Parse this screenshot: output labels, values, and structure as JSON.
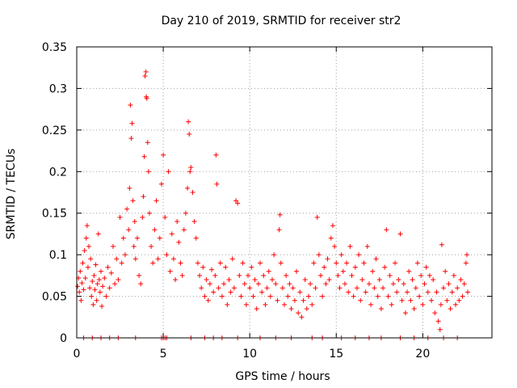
{
  "chart_data": {
    "type": "scatter",
    "title": "Day 210 of 2019, SRMTID for receiver str2",
    "xlabel": "GPS time / hours",
    "ylabel": "SRMTID / TECUs",
    "xlim": [
      0,
      24
    ],
    "ylim": [
      0,
      0.35
    ],
    "xticks": [
      0,
      5,
      10,
      15,
      20
    ],
    "xtick_labels": [
      "0",
      "5",
      "10",
      "15",
      "20"
    ],
    "yticks": [
      0,
      0.05,
      0.1,
      0.15,
      0.2,
      0.25,
      0.3,
      0.35
    ],
    "ytick_labels": [
      "0",
      "0.05",
      "0.1",
      "0.15",
      "0.2",
      "0.25",
      "0.3",
      "0.35"
    ],
    "grid": true,
    "marker": "+",
    "color": "#ff0000",
    "series": [
      {
        "name": "SRMTID",
        "points": [
          [
            0.05,
            0.062
          ],
          [
            0.1,
            0.072
          ],
          [
            0.15,
            0.055
          ],
          [
            0.2,
            0.08
          ],
          [
            0.25,
            0.045
          ],
          [
            0.3,
            0.066
          ],
          [
            0.35,
            0.09
          ],
          [
            0.4,
            0.058
          ],
          [
            0.45,
            0.105
          ],
          [
            0.5,
            0.072
          ],
          [
            0.55,
            0.12
          ],
          [
            0.6,
            0.135
          ],
          [
            0.65,
            0.085
          ],
          [
            0.7,
            0.11
          ],
          [
            0.75,
            0.06
          ],
          [
            0.8,
            0.095
          ],
          [
            0.85,
            0.05
          ],
          [
            0.9,
            0.068
          ],
          [
            0.95,
            0.04
          ],
          [
            1.0,
            0.075
          ],
          [
            1.05,
            0.058
          ],
          [
            1.1,
            0.088
          ],
          [
            1.15,
            0.045
          ],
          [
            1.2,
            0.065
          ],
          [
            1.25,
            0.125
          ],
          [
            1.3,
            0.07
          ],
          [
            1.35,
            0.055
          ],
          [
            1.4,
            0.08
          ],
          [
            1.45,
            0.038
          ],
          [
            1.5,
            0.062
          ],
          [
            1.6,
            0.072
          ],
          [
            1.7,
            0.05
          ],
          [
            1.8,
            0.085
          ],
          [
            1.9,
            0.06
          ],
          [
            2.0,
            0.078
          ],
          [
            2.1,
            0.11
          ],
          [
            2.2,
            0.065
          ],
          [
            2.3,
            0.095
          ],
          [
            2.4,
            0.07
          ],
          [
            2.5,
            0.145
          ],
          [
            2.6,
            0.09
          ],
          [
            2.7,
            0.12
          ],
          [
            2.8,
            0.1
          ],
          [
            2.9,
            0.155
          ],
          [
            3.0,
            0.13
          ],
          [
            3.05,
            0.18
          ],
          [
            3.1,
            0.28
          ],
          [
            3.15,
            0.24
          ],
          [
            3.2,
            0.258
          ],
          [
            3.25,
            0.165
          ],
          [
            3.3,
            0.11
          ],
          [
            3.35,
            0.14
          ],
          [
            3.4,
            0.095
          ],
          [
            3.5,
            0.12
          ],
          [
            3.6,
            0.075
          ],
          [
            3.7,
            0.065
          ],
          [
            3.8,
            0.145
          ],
          [
            3.85,
            0.17
          ],
          [
            3.9,
            0.218
          ],
          [
            3.95,
            0.315
          ],
          [
            4.0,
            0.32
          ],
          [
            4.02,
            0.29
          ],
          [
            4.05,
            0.288
          ],
          [
            4.1,
            0.235
          ],
          [
            4.15,
            0.2
          ],
          [
            4.2,
            0.15
          ],
          [
            4.3,
            0.11
          ],
          [
            4.4,
            0.09
          ],
          [
            4.5,
            0.13
          ],
          [
            4.6,
            0.165
          ],
          [
            4.7,
            0.095
          ],
          [
            4.8,
            0.12
          ],
          [
            4.9,
            0.185
          ],
          [
            5.0,
            0.22
          ],
          [
            5.1,
            0.145
          ],
          [
            5.2,
            0.1
          ],
          [
            5.3,
            0.2
          ],
          [
            5.4,
            0.08
          ],
          [
            5.5,
            0.125
          ],
          [
            5.6,
            0.095
          ],
          [
            5.7,
            0.07
          ],
          [
            5.8,
            0.14
          ],
          [
            5.9,
            0.115
          ],
          [
            6.0,
            0.09
          ],
          [
            6.1,
            0.075
          ],
          [
            6.2,
            0.13
          ],
          [
            6.3,
            0.15
          ],
          [
            6.4,
            0.18
          ],
          [
            6.45,
            0.26
          ],
          [
            6.5,
            0.245
          ],
          [
            6.55,
            0.2
          ],
          [
            6.6,
            0.205
          ],
          [
            6.7,
            0.175
          ],
          [
            6.8,
            0.14
          ],
          [
            6.9,
            0.12
          ],
          [
            7.0,
            0.09
          ],
          [
            7.1,
            0.075
          ],
          [
            7.2,
            0.06
          ],
          [
            7.3,
            0.085
          ],
          [
            7.4,
            0.05
          ],
          [
            7.5,
            0.07
          ],
          [
            7.6,
            0.045
          ],
          [
            7.7,
            0.065
          ],
          [
            7.8,
            0.082
          ],
          [
            7.9,
            0.055
          ],
          [
            8.0,
            0.075
          ],
          [
            8.05,
            0.22
          ],
          [
            8.1,
            0.185
          ],
          [
            8.2,
            0.06
          ],
          [
            8.3,
            0.09
          ],
          [
            8.4,
            0.05
          ],
          [
            8.5,
            0.065
          ],
          [
            8.6,
            0.085
          ],
          [
            8.7,
            0.04
          ],
          [
            8.8,
            0.07
          ],
          [
            8.9,
            0.055
          ],
          [
            9.0,
            0.095
          ],
          [
            9.1,
            0.06
          ],
          [
            9.2,
            0.165
          ],
          [
            9.3,
            0.162
          ],
          [
            9.4,
            0.075
          ],
          [
            9.5,
            0.05
          ],
          [
            9.6,
            0.09
          ],
          [
            9.7,
            0.065
          ],
          [
            9.8,
            0.04
          ],
          [
            9.9,
            0.075
          ],
          [
            10.0,
            0.06
          ],
          [
            10.1,
            0.085
          ],
          [
            10.2,
            0.05
          ],
          [
            10.3,
            0.07
          ],
          [
            10.4,
            0.035
          ],
          [
            10.5,
            0.065
          ],
          [
            10.6,
            0.09
          ],
          [
            10.7,
            0.055
          ],
          [
            10.8,
            0.075
          ],
          [
            10.9,
            0.04
          ],
          [
            11.0,
            0.06
          ],
          [
            11.1,
            0.08
          ],
          [
            11.2,
            0.05
          ],
          [
            11.3,
            0.07
          ],
          [
            11.4,
            0.1
          ],
          [
            11.5,
            0.065
          ],
          [
            11.6,
            0.045
          ],
          [
            11.7,
            0.13
          ],
          [
            11.75,
            0.148
          ],
          [
            11.8,
            0.09
          ],
          [
            11.9,
            0.06
          ],
          [
            12.0,
            0.04
          ],
          [
            12.1,
            0.075
          ],
          [
            12.2,
            0.05
          ],
          [
            12.3,
            0.065
          ],
          [
            12.4,
            0.035
          ],
          [
            12.5,
            0.06
          ],
          [
            12.6,
            0.045
          ],
          [
            12.7,
            0.08
          ],
          [
            12.8,
            0.03
          ],
          [
            12.9,
            0.055
          ],
          [
            13.0,
            0.025
          ],
          [
            13.1,
            0.045
          ],
          [
            13.2,
            0.07
          ],
          [
            13.3,
            0.035
          ],
          [
            13.4,
            0.05
          ],
          [
            13.5,
            0.065
          ],
          [
            13.6,
            0.04
          ],
          [
            13.7,
            0.09
          ],
          [
            13.8,
            0.06
          ],
          [
            13.9,
            0.145
          ],
          [
            14.0,
            0.1
          ],
          [
            14.1,
            0.075
          ],
          [
            14.2,
            0.05
          ],
          [
            14.3,
            0.085
          ],
          [
            14.4,
            0.065
          ],
          [
            14.5,
            0.095
          ],
          [
            14.6,
            0.07
          ],
          [
            14.7,
            0.12
          ],
          [
            14.8,
            0.135
          ],
          [
            14.9,
            0.11
          ],
          [
            15.0,
            0.09
          ],
          [
            15.1,
            0.075
          ],
          [
            15.2,
            0.06
          ],
          [
            15.3,
            0.1
          ],
          [
            15.4,
            0.08
          ],
          [
            15.5,
            0.065
          ],
          [
            15.6,
            0.09
          ],
          [
            15.7,
            0.055
          ],
          [
            15.8,
            0.11
          ],
          [
            15.9,
            0.075
          ],
          [
            16.0,
            0.05
          ],
          [
            16.1,
            0.085
          ],
          [
            16.2,
            0.06
          ],
          [
            16.3,
            0.1
          ],
          [
            16.4,
            0.045
          ],
          [
            16.5,
            0.07
          ],
          [
            16.6,
            0.09
          ],
          [
            16.7,
            0.055
          ],
          [
            16.8,
            0.11
          ],
          [
            16.9,
            0.065
          ],
          [
            17.0,
            0.04
          ],
          [
            17.1,
            0.08
          ],
          [
            17.2,
            0.06
          ],
          [
            17.3,
            0.095
          ],
          [
            17.4,
            0.05
          ],
          [
            17.5,
            0.07
          ],
          [
            17.6,
            0.035
          ],
          [
            17.7,
            0.06
          ],
          [
            17.8,
            0.085
          ],
          [
            17.9,
            0.13
          ],
          [
            18.0,
            0.05
          ],
          [
            18.1,
            0.075
          ],
          [
            18.2,
            0.04
          ],
          [
            18.3,
            0.065
          ],
          [
            18.4,
            0.09
          ],
          [
            18.5,
            0.055
          ],
          [
            18.6,
            0.07
          ],
          [
            18.7,
            0.125
          ],
          [
            18.8,
            0.045
          ],
          [
            18.9,
            0.065
          ],
          [
            19.0,
            0.03
          ],
          [
            19.1,
            0.055
          ],
          [
            19.2,
            0.08
          ],
          [
            19.3,
            0.045
          ],
          [
            19.4,
            0.07
          ],
          [
            19.5,
            0.035
          ],
          [
            19.6,
            0.06
          ],
          [
            19.7,
            0.09
          ],
          [
            19.8,
            0.05
          ],
          [
            19.9,
            0.075
          ],
          [
            20.0,
            0.04
          ],
          [
            20.1,
            0.065
          ],
          [
            20.2,
            0.085
          ],
          [
            20.3,
            0.055
          ],
          [
            20.4,
            0.075
          ],
          [
            20.5,
            0.045
          ],
          [
            20.6,
            0.07
          ],
          [
            20.7,
            0.03
          ],
          [
            20.8,
            0.055
          ],
          [
            20.9,
            0.02
          ],
          [
            21.0,
            0.01
          ],
          [
            21.05,
            0.04
          ],
          [
            21.1,
            0.112
          ],
          [
            21.2,
            0.06
          ],
          [
            21.3,
            0.08
          ],
          [
            21.4,
            0.045
          ],
          [
            21.5,
            0.065
          ],
          [
            21.6,
            0.035
          ],
          [
            21.7,
            0.055
          ],
          [
            21.8,
            0.075
          ],
          [
            21.9,
            0.04
          ],
          [
            22.0,
            0.06
          ],
          [
            22.1,
            0.045
          ],
          [
            22.2,
            0.07
          ],
          [
            22.3,
            0.05
          ],
          [
            22.4,
            0.065
          ],
          [
            22.5,
            0.09
          ],
          [
            22.55,
            0.1
          ],
          [
            22.6,
            0.055
          ],
          [
            0.4,
            0.0
          ],
          [
            0.9,
            0.0
          ],
          [
            1.4,
            0.0
          ],
          [
            1.9,
            0.0
          ],
          [
            2.4,
            0.0
          ],
          [
            3.4,
            0.0
          ],
          [
            4.9,
            0.0
          ],
          [
            5.0,
            0.0
          ],
          [
            5.1,
            0.0
          ],
          [
            5.2,
            0.0
          ],
          [
            6.6,
            0.0
          ],
          [
            7.4,
            0.0
          ],
          [
            7.9,
            0.0
          ],
          [
            8.4,
            0.0
          ],
          [
            9.3,
            0.0
          ],
          [
            10.6,
            0.0
          ],
          [
            11.5,
            0.0
          ],
          [
            12.4,
            0.0
          ],
          [
            13.6,
            0.0
          ],
          [
            14.2,
            0.0
          ],
          [
            15.3,
            0.0
          ],
          [
            16.1,
            0.0
          ],
          [
            16.9,
            0.0
          ],
          [
            17.6,
            0.0
          ],
          [
            18.7,
            0.0
          ],
          [
            19.5,
            0.0
          ],
          [
            20.3,
            0.0
          ],
          [
            21.2,
            0.0
          ],
          [
            22.0,
            0.0
          ]
        ]
      }
    ]
  }
}
